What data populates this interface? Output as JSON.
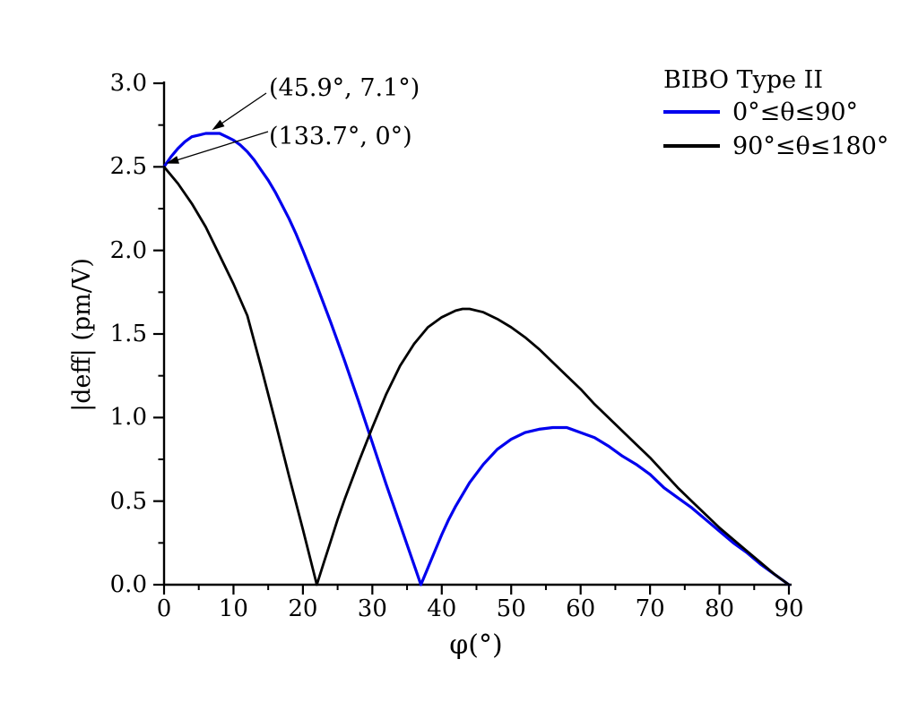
{
  "chart_data": {
    "type": "line",
    "xlabel": "φ(°)",
    "ylabel": "|deff| (pm/V)",
    "xlim": [
      0,
      90
    ],
    "ylim": [
      0,
      3
    ],
    "grid": false,
    "legend_position": "top-right",
    "legend": {
      "title": "BIBO Type II",
      "items": [
        {
          "label": "0°≤θ≤90°",
          "color": "#0000EE"
        },
        {
          "label": "90°≤θ≤180°",
          "color": "#000000"
        }
      ]
    },
    "x_ticks": {
      "major": [
        0,
        10,
        20,
        30,
        40,
        50,
        60,
        70,
        80,
        90
      ],
      "labels": [
        "0",
        "10",
        "20",
        "30",
        "40",
        "50",
        "60",
        "70",
        "80",
        "90"
      ],
      "minor": [
        5,
        15,
        25,
        35,
        45,
        55,
        65,
        75,
        85
      ]
    },
    "y_ticks": {
      "major": [
        0,
        0.5,
        1,
        1.5,
        2,
        2.5,
        3
      ],
      "labels": [
        "0.0",
        "0.5",
        "1.0",
        "1.5",
        "2.0",
        "2.5",
        "3.0"
      ],
      "minor": [
        0.25,
        0.75,
        1.25,
        1.75,
        2.25,
        2.75
      ]
    },
    "series": [
      {
        "name": "0°≤θ≤90°",
        "color": "#0000EE",
        "points": [
          [
            0,
            2.5
          ],
          [
            1,
            2.56
          ],
          [
            2,
            2.61
          ],
          [
            3,
            2.65
          ],
          [
            4,
            2.68
          ],
          [
            5,
            2.69
          ],
          [
            6,
            2.7
          ],
          [
            7,
            2.7
          ],
          [
            8,
            2.7
          ],
          [
            9,
            2.68
          ],
          [
            10,
            2.66
          ],
          [
            11,
            2.63
          ],
          [
            12,
            2.59
          ],
          [
            13,
            2.54
          ],
          [
            14,
            2.48
          ],
          [
            15,
            2.42
          ],
          [
            16,
            2.35
          ],
          [
            17,
            2.27
          ],
          [
            18,
            2.19
          ],
          [
            19,
            2.1
          ],
          [
            20,
            2.0
          ],
          [
            22,
            1.79
          ],
          [
            24,
            1.57
          ],
          [
            26,
            1.34
          ],
          [
            28,
            1.1
          ],
          [
            30,
            0.85
          ],
          [
            32,
            0.6
          ],
          [
            34,
            0.36
          ],
          [
            36,
            0.12
          ],
          [
            37,
            0.0
          ],
          [
            38,
            0.1
          ],
          [
            39,
            0.2
          ],
          [
            40,
            0.3
          ],
          [
            41,
            0.39
          ],
          [
            42,
            0.47
          ],
          [
            44,
            0.61
          ],
          [
            46,
            0.72
          ],
          [
            48,
            0.81
          ],
          [
            50,
            0.87
          ],
          [
            52,
            0.91
          ],
          [
            54,
            0.93
          ],
          [
            56,
            0.94
          ],
          [
            57,
            0.94
          ],
          [
            58,
            0.94
          ],
          [
            60,
            0.91
          ],
          [
            62,
            0.88
          ],
          [
            64,
            0.83
          ],
          [
            66,
            0.77
          ],
          [
            68,
            0.72
          ],
          [
            70,
            0.66
          ],
          [
            72,
            0.58
          ],
          [
            74,
            0.52
          ],
          [
            76,
            0.46
          ],
          [
            78,
            0.39
          ],
          [
            80,
            0.32
          ],
          [
            82,
            0.25
          ],
          [
            84,
            0.19
          ],
          [
            86,
            0.12
          ],
          [
            88,
            0.06
          ],
          [
            90,
            0.0
          ]
        ]
      },
      {
        "name": "90°≤θ≤180°",
        "color": "#000000",
        "points": [
          [
            0,
            2.5
          ],
          [
            2,
            2.4
          ],
          [
            4,
            2.28
          ],
          [
            6,
            2.14
          ],
          [
            8,
            1.97
          ],
          [
            10,
            1.8
          ],
          [
            12,
            1.61
          ],
          [
            14,
            1.3
          ],
          [
            16,
            0.98
          ],
          [
            18,
            0.65
          ],
          [
            20,
            0.33
          ],
          [
            22,
            0.0
          ],
          [
            23,
            0.13
          ],
          [
            24,
            0.26
          ],
          [
            25,
            0.39
          ],
          [
            26,
            0.51
          ],
          [
            28,
            0.73
          ],
          [
            30,
            0.94
          ],
          [
            32,
            1.14
          ],
          [
            34,
            1.31
          ],
          [
            36,
            1.44
          ],
          [
            38,
            1.54
          ],
          [
            40,
            1.6
          ],
          [
            42,
            1.64
          ],
          [
            43,
            1.65
          ],
          [
            44,
            1.65
          ],
          [
            46,
            1.63
          ],
          [
            48,
            1.59
          ],
          [
            50,
            1.54
          ],
          [
            52,
            1.48
          ],
          [
            54,
            1.41
          ],
          [
            56,
            1.33
          ],
          [
            58,
            1.25
          ],
          [
            60,
            1.17
          ],
          [
            62,
            1.08
          ],
          [
            64,
            1.0
          ],
          [
            66,
            0.92
          ],
          [
            68,
            0.84
          ],
          [
            70,
            0.76
          ],
          [
            72,
            0.67
          ],
          [
            74,
            0.58
          ],
          [
            76,
            0.5
          ],
          [
            78,
            0.42
          ],
          [
            80,
            0.34
          ],
          [
            82,
            0.27
          ],
          [
            84,
            0.2
          ],
          [
            86,
            0.13
          ],
          [
            88,
            0.06
          ],
          [
            90,
            0.0
          ]
        ]
      }
    ],
    "annotations": [
      {
        "text": "(45.9°, 7.1°)",
        "target": {
          "phi": 6.9,
          "deff": 2.72
        }
      },
      {
        "text": "(133.7°, 0°)",
        "target": {
          "phi": 0.3,
          "deff": 2.52
        }
      }
    ]
  }
}
